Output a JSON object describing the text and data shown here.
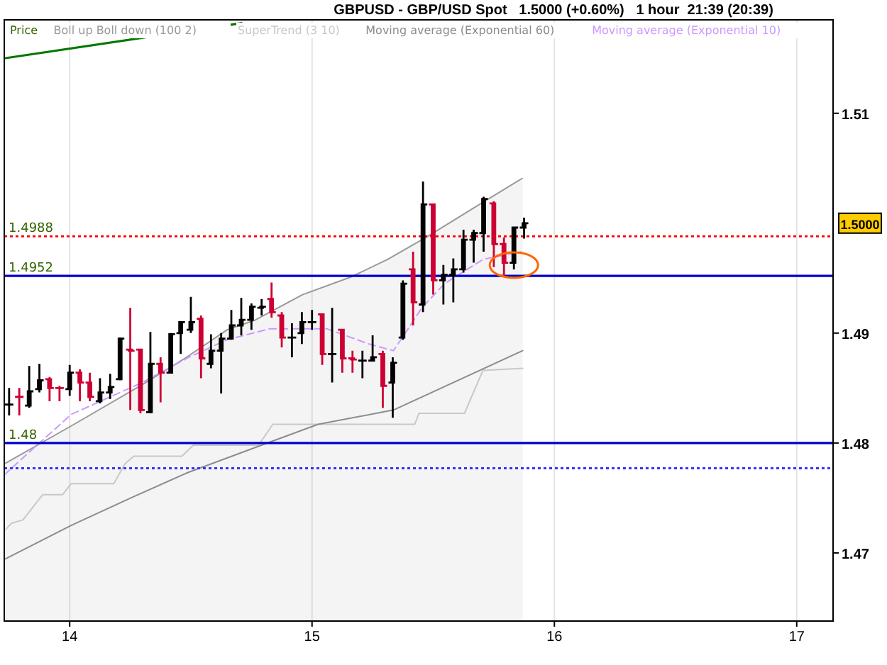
{
  "chart_data": {
    "type": "candlestick",
    "title": "GBPUSD - GBP/USD Spot   1.5000 (+0.60%)   1 hour  21:39 (20:39)",
    "x": [
      13.75,
      13.792,
      13.833,
      13.875,
      13.917,
      13.958,
      14.0,
      14.042,
      14.083,
      14.125,
      14.167,
      14.208,
      14.25,
      14.292,
      14.333,
      14.375,
      14.417,
      14.458,
      14.5,
      14.542,
      14.583,
      14.625,
      14.667,
      14.708,
      14.75,
      14.792,
      14.833,
      14.875,
      14.917,
      14.958,
      15.0,
      15.042,
      15.083,
      15.125,
      15.167,
      15.208,
      15.25,
      15.292,
      15.333,
      15.375,
      15.417,
      15.458,
      15.5,
      15.542,
      15.583,
      15.625,
      15.667,
      15.708,
      15.75,
      15.792,
      15.833,
      15.875
    ],
    "ohlc": [
      [
        1.4835,
        1.485,
        1.4825,
        1.4835
      ],
      [
        1.4842,
        1.485,
        1.4825,
        1.4842
      ],
      [
        1.4834,
        1.487,
        1.4832,
        1.4847
      ],
      [
        1.4849,
        1.4872,
        1.4846,
        1.4857
      ],
      [
        1.4858,
        1.486,
        1.4838,
        1.485
      ],
      [
        1.485,
        1.4852,
        1.4838,
        1.485
      ],
      [
        1.4849,
        1.4871,
        1.4843,
        1.4864
      ],
      [
        1.4864,
        1.4867,
        1.4838,
        1.4855
      ],
      [
        1.4855,
        1.4864,
        1.4838,
        1.4842
      ],
      [
        1.4838,
        1.4859,
        1.4836,
        1.4846
      ],
      [
        1.4846,
        1.4863,
        1.484,
        1.4851
      ],
      [
        1.4858,
        1.4896,
        1.4857,
        1.4895
      ],
      [
        1.4885,
        1.4923,
        1.483,
        1.4884
      ],
      [
        1.4885,
        1.4885,
        1.4827,
        1.483
      ],
      [
        1.4828,
        1.4901,
        1.4827,
        1.4872
      ],
      [
        1.4872,
        1.4878,
        1.4837,
        1.4864
      ],
      [
        1.4864,
        1.49,
        1.4864,
        1.4899
      ],
      [
        1.49,
        1.491,
        1.4881,
        1.491
      ],
      [
        1.4903,
        1.4933,
        1.49,
        1.491
      ],
      [
        1.4913,
        1.4916,
        1.4859,
        1.4877
      ],
      [
        1.4872,
        1.4899,
        1.4868,
        1.4884
      ],
      [
        1.4884,
        1.49,
        1.4845,
        1.4895
      ],
      [
        1.4895,
        1.4921,
        1.4894,
        1.4907
      ],
      [
        1.4907,
        1.4932,
        1.4898,
        1.4912
      ],
      [
        1.4912,
        1.4927,
        1.4903,
        1.4924
      ],
      [
        1.4923,
        1.4931,
        1.4916,
        1.4924
      ],
      [
        1.4931,
        1.4946,
        1.4914,
        1.4919
      ],
      [
        1.4916,
        1.4919,
        1.4887,
        1.4896
      ],
      [
        1.4896,
        1.4909,
        1.4878,
        1.4896
      ],
      [
        1.49,
        1.4919,
        1.489,
        1.491
      ],
      [
        1.491,
        1.4921,
        1.4903,
        1.491
      ],
      [
        1.4917,
        1.4917,
        1.4871,
        1.4881
      ],
      [
        1.4881,
        1.4923,
        1.4855,
        1.4881
      ],
      [
        1.4903,
        1.4903,
        1.4864,
        1.4877
      ],
      [
        1.4877,
        1.4884,
        1.4864,
        1.4876
      ],
      [
        1.4875,
        1.4884,
        1.4859,
        1.4875
      ],
      [
        1.4875,
        1.4898,
        1.4875,
        1.4878
      ],
      [
        1.4881,
        1.4884,
        1.4832,
        1.4852
      ],
      [
        1.4855,
        1.4878,
        1.4823,
        1.4873
      ],
      [
        1.4896,
        1.4948,
        1.4894,
        1.4945
      ],
      [
        1.4958,
        1.4974,
        1.4907,
        1.4928
      ],
      [
        1.4926,
        1.5038,
        1.4919,
        1.5017
      ],
      [
        1.5017,
        1.5018,
        1.4935,
        1.4948
      ],
      [
        1.4948,
        1.4962,
        1.4926,
        1.4953
      ],
      [
        1.4953,
        1.4968,
        1.4928,
        1.4958
      ],
      [
        1.4958,
        1.4994,
        1.4955,
        1.4985
      ],
      [
        1.4985,
        1.4994,
        1.4964,
        1.4991
      ],
      [
        1.4991,
        1.5024,
        1.4974,
        1.5022
      ],
      [
        1.5018,
        1.502,
        1.496,
        1.4981
      ],
      [
        1.4981,
        1.4987,
        1.4951,
        1.4964
      ],
      [
        1.4964,
        1.4997,
        1.4958,
        1.4996
      ],
      [
        1.4996,
        1.5005,
        1.4986,
        1.5
      ]
    ],
    "colors": [
      "#000000",
      "#cc0033",
      "#000000",
      "#000000",
      "#cc0033",
      "#cc0033",
      "#000000",
      "#cc0033",
      "#cc0033",
      "#000000",
      "#000000",
      "#000000",
      "#cc0033",
      "#cc0033",
      "#000000",
      "#cc0033",
      "#000000",
      "#000000",
      "#000000",
      "#cc0033",
      "#000000",
      "#000000",
      "#000000",
      "#000000",
      "#000000",
      "#000000",
      "#cc0033",
      "#cc0033",
      "#000000",
      "#000000",
      "#000000",
      "#cc0033",
      "#000000",
      "#cc0033",
      "#cc0033",
      "#000000",
      "#000000",
      "#cc0033",
      "#000000",
      "#000000",
      "#cc0033",
      "#000000",
      "#cc0033",
      "#000000",
      "#000000",
      "#000000",
      "#000000",
      "#000000",
      "#cc0033",
      "#cc0033",
      "#000000",
      "#000000"
    ],
    "series": [
      {
        "type": "area",
        "name": "Boll up Boll down (100 2)",
        "color": "#999999",
        "x": [
          13.73,
          14.018,
          14.299,
          14.475,
          14.65,
          14.767,
          14.961,
          15.16,
          15.312,
          15.47,
          15.705,
          15.869
        ],
        "values": [
          1.4781,
          1.4817,
          1.4853,
          1.4877,
          1.4903,
          1.4912,
          1.4935,
          1.4951,
          1.4967,
          1.4987,
          1.5019,
          1.5041
        ]
      },
      {
        "type": "line",
        "name": "SuperTrend (3 10)",
        "color": "#c8c8c8",
        "x": [
          13.73,
          13.76,
          13.807,
          13.889,
          13.971,
          14.006,
          14.182,
          14.228,
          14.264,
          14.463,
          14.51,
          14.779,
          14.838,
          15.424,
          15.441,
          15.629,
          15.705,
          15.869
        ],
        "values": [
          1.472,
          1.4727,
          1.473,
          1.4753,
          1.4753,
          1.4763,
          1.4763,
          1.4781,
          1.4788,
          1.4788,
          1.4798,
          1.4798,
          1.4817,
          1.4817,
          1.4827,
          1.4827,
          1.4866,
          1.4868
        ]
      },
      {
        "type": "line",
        "name": "Moving average (Exponential 60)",
        "color": "#8c8c8c",
        "x": [
          13.73,
          14.006,
          14.252,
          14.486,
          14.791,
          15.025,
          15.336,
          15.869
        ],
        "values": [
          1.4694,
          1.4725,
          1.475,
          1.4773,
          1.4798,
          1.4817,
          1.483,
          1.4884
        ]
      },
      {
        "type": "line",
        "name": "Moving average (Exponential 10)",
        "color": "#cc99ff",
        "line_style": "dashed",
        "x": [
          13.73,
          13.83,
          14.006,
          14.299,
          14.492,
          14.65,
          14.826,
          15.06,
          15.236,
          15.336,
          15.394,
          15.453,
          15.547,
          15.705,
          15.863
        ],
        "values": [
          1.4771,
          1.4791,
          1.4826,
          1.4855,
          1.4878,
          1.4894,
          1.4904,
          1.4904,
          1.489,
          1.4884,
          1.4903,
          1.4923,
          1.4945,
          1.4967,
          1.4974
        ]
      },
      {
        "type": "line",
        "color": "#007700",
        "x": [
          13.73,
          14.709
        ],
        "values": [
          1.515,
          1.5182
        ]
      }
    ],
    "ref_lines": [
      {
        "axis": "y",
        "value": 1.4988,
        "label": "1.4988",
        "color": "#ff0000",
        "line_style": "dotted"
      },
      {
        "axis": "y",
        "value": 1.4952,
        "label": "1.4952",
        "color": "#0000cc",
        "line_style": "solid"
      },
      {
        "axis": "y",
        "value": 1.48,
        "label": "1.48",
        "color": "#0000cc",
        "line_style": "solid"
      },
      {
        "axis": "y",
        "value": 1.4777,
        "color": "#3333ff",
        "line_style": "dotted"
      }
    ],
    "annotations": [
      "1.5000"
    ],
    "legend_title": "Price",
    "xlim": [
      13.73,
      17.15
    ],
    "xticks": [
      14,
      15,
      16,
      17
    ],
    "ylim": [
      1.4638,
      1.5185
    ],
    "yticks": [
      1.47,
      1.48,
      1.49,
      1.51
    ],
    "grid": "x",
    "legend": "top left"
  }
}
